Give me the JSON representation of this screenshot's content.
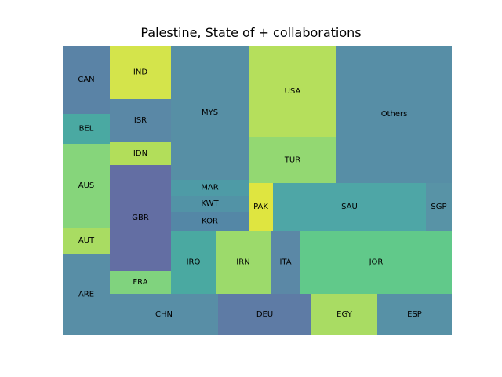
{
  "chart_data": {
    "type": "treemap",
    "title": "Palestine, State of + collaborations",
    "items": [
      {
        "label": "CAN",
        "value": 17,
        "color": "#5a83a6"
      },
      {
        "label": "BEL",
        "value": 7.5,
        "color": "#4aa9a2"
      },
      {
        "label": "AUS",
        "value": 21,
        "color": "#86d57b"
      },
      {
        "label": "AUT",
        "value": 6.5,
        "color": "#a9dc62"
      },
      {
        "label": "ARE",
        "value": 21,
        "color": "#588ea6"
      },
      {
        "label": "IND",
        "value": 16,
        "color": "#d4e44b"
      },
      {
        "label": "ISR",
        "value": 16,
        "color": "#5a88a6"
      },
      {
        "label": "IDN",
        "value": 7,
        "color": "#b2de5a"
      },
      {
        "label": "GBR",
        "value": 32,
        "color": "#636ea3"
      },
      {
        "label": "FRA",
        "value": 7,
        "color": "#80d37e"
      },
      {
        "label": "MYS",
        "value": 52,
        "color": "#578fa5"
      },
      {
        "label": "MAR",
        "value": 6,
        "color": "#4e9ba6"
      },
      {
        "label": "KWT",
        "value": 6,
        "color": "#5293a6"
      },
      {
        "label": "KOR",
        "value": 6,
        "color": "#5487a6"
      },
      {
        "label": "USA",
        "value": 39,
        "color": "#b5df5c"
      },
      {
        "label": "TUR",
        "value": 20,
        "color": "#93d872"
      },
      {
        "label": "Others",
        "value": 77,
        "color": "#578ea6"
      },
      {
        "label": "PAK",
        "value": 5.5,
        "color": "#dfe540"
      },
      {
        "label": "SAU",
        "value": 36,
        "color": "#4ea6a6"
      },
      {
        "label": "SGP",
        "value": 6,
        "color": "#5893a6"
      },
      {
        "label": "IRQ",
        "value": 13,
        "color": "#4aa9a1"
      },
      {
        "label": "IRN",
        "value": 16,
        "color": "#9cda6b"
      },
      {
        "label": "ITA",
        "value": 7.5,
        "color": "#5b88a6"
      },
      {
        "label": "JOR",
        "value": 46,
        "color": "#61c98a"
      },
      {
        "label": "CHN",
        "value": 35,
        "color": "#588ea6"
      },
      {
        "label": "DEU",
        "value": 26,
        "color": "#5e7ba5"
      },
      {
        "label": "EGY",
        "value": 18,
        "color": "#a9dc63"
      },
      {
        "label": "ESP",
        "value": 21,
        "color": "#5791a6"
      }
    ]
  }
}
